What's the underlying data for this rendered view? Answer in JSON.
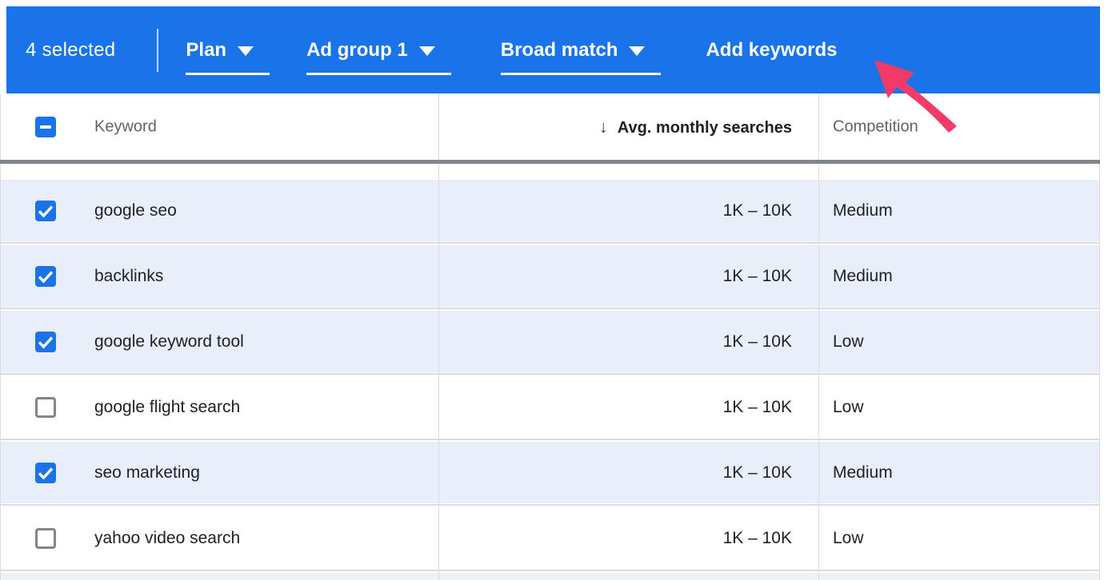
{
  "action_bar": {
    "selected_count": "4 selected",
    "plan_dropdown_label": "Plan",
    "ad_group_dropdown_label": "Ad group 1",
    "match_type_dropdown_label": "Broad match",
    "add_keywords_button_label": "Add keywords"
  },
  "table": {
    "header": {
      "select_all_state": "indeterminate",
      "keyword_label": "Keyword",
      "sort_icon": "↓",
      "avg_monthly_searches_label": "Avg. monthly searches",
      "competition_label": "Competition",
      "sorted_column": "avg_monthly_searches",
      "sort_direction": "descending"
    },
    "rows": [
      {
        "keyword": "google seo",
        "checked": true,
        "avg_monthly_searches": "1K – 10K",
        "competition": "Medium"
      },
      {
        "keyword": "backlinks",
        "checked": true,
        "avg_monthly_searches": "1K – 10K",
        "competition": "Medium"
      },
      {
        "keyword": "google keyword tool",
        "checked": true,
        "avg_monthly_searches": "1K – 10K",
        "competition": "Low"
      },
      {
        "keyword": "google flight search",
        "checked": false,
        "avg_monthly_searches": "1K – 10K",
        "competition": "Low"
      },
      {
        "keyword": "seo marketing",
        "checked": true,
        "avg_monthly_searches": "1K – 10K",
        "competition": "Medium"
      },
      {
        "keyword": "yahoo video search",
        "checked": false,
        "avg_monthly_searches": "1K – 10K",
        "competition": "Low"
      }
    ]
  },
  "colors": {
    "accent_blue": "#1a73e8",
    "selected_row_bg": "#e9eefb",
    "scroll_shadow_gray": "#80868b",
    "annotation_arrow_pink": "#f23a68"
  },
  "annotation": {
    "arrow_target": "Add keywords"
  }
}
